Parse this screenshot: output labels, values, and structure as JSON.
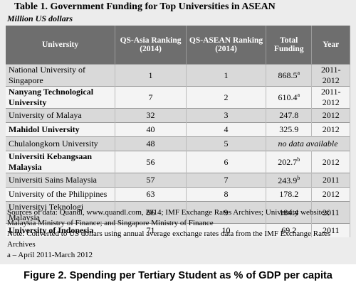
{
  "title": "Table 1. Government Funding for Top Universities in ASEAN",
  "subtitle": "Million US dollars",
  "table": {
    "headers": [
      "University",
      "QS-Asia Ranking (2014)",
      "QS-ASEAN Ranking (2014)",
      "Total Funding",
      "Year"
    ],
    "rows": [
      {
        "university": "National University of Singapore",
        "qs_asia": "1",
        "qs_asean": "1",
        "funding": "868.5",
        "funding_note": "a",
        "year": "2011-2012"
      },
      {
        "university": "Nanyang Technological University",
        "qs_asia": "7",
        "qs_asean": "2",
        "funding": "610.4",
        "funding_note": "a",
        "year": "2011-2012"
      },
      {
        "university": "University of Malaya",
        "qs_asia": "32",
        "qs_asean": "3",
        "funding": "247.8",
        "year": "2012"
      },
      {
        "university": "Mahidol University",
        "qs_asia": "40",
        "qs_asean": "4",
        "funding": "325.9",
        "year": "2012"
      },
      {
        "university": "Chulalongkorn University",
        "qs_asia": "48",
        "qs_asean": "5",
        "funding": "no data available"
      },
      {
        "university": "Universiti Kebangsaan Malaysia",
        "qs_asia": "56",
        "qs_asean": "6",
        "funding": "202.7",
        "funding_note": "b",
        "year": "2012"
      },
      {
        "university": "Universiti Sains Malaysia",
        "qs_asia": "57",
        "qs_asean": "7",
        "funding": "243.9",
        "funding_note": "b",
        "year": "2011"
      },
      {
        "university": "University of the Philippines",
        "qs_asia": "63",
        "qs_asean": "8",
        "funding": "178.2",
        "year": "2012"
      },
      {
        "university": "Universityi Teknologi Malaysia",
        "qs_asia": "66",
        "qs_asean": "9",
        "funding": "184.4",
        "year": "2011"
      },
      {
        "university": "University of Indonesia",
        "qs_asia": "71",
        "qs_asean": "10",
        "funding": "69.2",
        "year": "2011"
      }
    ]
  },
  "notes": [
    "Sources of data: Quandl, www.quandl.com, 2014; IMF Exchange Rates Archives; University websites; Malaysia Ministry of Finance; and Singapore Ministry of Finance",
    "Note: Converted to US dollars using annual average exchange rates data from the IMF Exchange Rates Archives",
    "a – April 2011-March 2012"
  ],
  "caption": "Figure 2. Spending per Tertiary Student as % of GDP per capita"
}
